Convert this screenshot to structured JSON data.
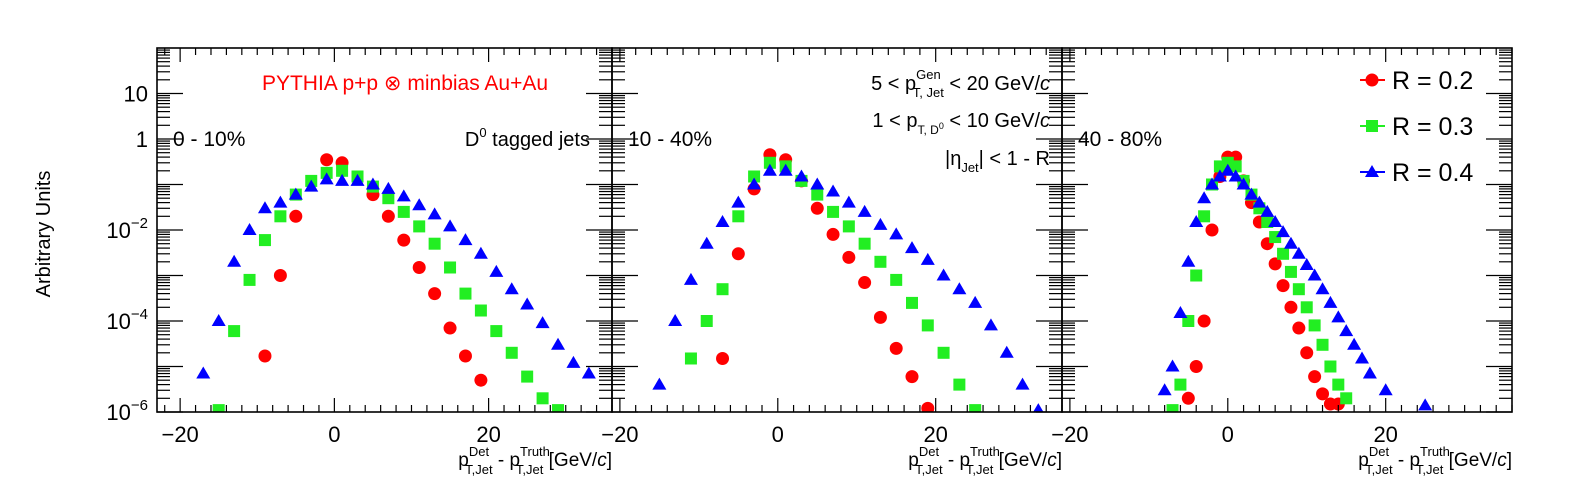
{
  "colors": {
    "R02": "#ff0000",
    "R03": "#22ee22",
    "R04": "#0000ff",
    "top_label": "#ff0000"
  },
  "ylabel": "Arbitrary Units",
  "xlabel": {
    "prefix": "p",
    "sup1": "Det",
    "sub1": "T,Jet",
    "dash": " - p",
    "sup2": "Truth",
    "sub2": "T,Jet",
    "unit": " [GeV/",
    "unit_c": "c",
    "unit_end": "]"
  },
  "annotations": {
    "generator": "PYTHIA p+p ⊗ minbias Au+Au",
    "tag": {
      "main": "D",
      "sup": "0",
      "rest": " tagged jets"
    },
    "pt_gen": {
      "pre": "5 < p",
      "sup": "Gen",
      "sub": "T, Jet",
      "post": " < 20 GeV/",
      "c": "c"
    },
    "pt_d0": {
      "pre": "1 < p",
      "sub": "T, D",
      "subsup": "0",
      "post": " < 10 GeV/",
      "c": "c"
    },
    "eta": {
      "pre": "|η",
      "sub": "Jet",
      "post": "| < 1 - R"
    }
  },
  "legend": [
    "R = 0.2",
    "R = 0.3",
    "R = 0.4"
  ],
  "y_tick_labels": [
    {
      "mant": "10",
      "exp": "",
      "value": 10
    },
    {
      "mant": "1",
      "exp": "",
      "value": 1
    },
    {
      "mant": "10",
      "exp": "−2",
      "value": 0.01
    },
    {
      "mant": "10",
      "exp": "−4",
      "value": 0.0001
    },
    {
      "mant": "10",
      "exp": "−6",
      "value": 1e-06
    }
  ],
  "chart_data": [
    {
      "type": "scatter",
      "panel_label": "0 - 10%",
      "x_tick_labels": [
        "−20",
        "0",
        "20"
      ],
      "xlim": [
        -23,
        36
      ],
      "ylim": [
        1e-06,
        100
      ],
      "yscale": "log",
      "series": [
        {
          "name": "R = 0.2",
          "marker": "circle",
          "x": [
            -9,
            -7,
            -5,
            -1,
            1,
            5,
            7,
            9,
            11,
            13,
            15,
            17,
            19
          ],
          "y": [
            1.7e-05,
            0.001,
            0.02,
            0.35,
            0.3,
            0.06,
            0.02,
            0.006,
            0.0015,
            0.0004,
            7e-05,
            1.7e-05,
            5e-06
          ]
        },
        {
          "name": "R = 0.3",
          "marker": "square",
          "x": [
            -15,
            -13,
            -11,
            -9,
            -7,
            -5,
            -3,
            -1,
            1,
            3,
            5,
            7,
            9,
            11,
            13,
            15,
            17,
            19,
            21,
            23,
            25,
            27,
            29
          ],
          "y": [
            1.1e-06,
            6e-05,
            0.0008,
            0.006,
            0.02,
            0.06,
            0.12,
            0.18,
            0.2,
            0.15,
            0.09,
            0.05,
            0.025,
            0.012,
            0.005,
            0.0015,
            0.0004,
            0.00017,
            6e-05,
            2e-05,
            6e-06,
            2e-06,
            1.1e-06
          ]
        },
        {
          "name": "R = 0.4",
          "marker": "triangle",
          "x": [
            -17,
            -15,
            -13,
            -11,
            -9,
            -7,
            -5,
            -3,
            -1,
            1,
            3,
            5,
            7,
            9,
            11,
            13,
            15,
            17,
            19,
            21,
            23,
            25,
            27,
            29,
            31,
            33
          ],
          "y": [
            7e-06,
            0.0001,
            0.002,
            0.01,
            0.03,
            0.04,
            0.06,
            0.09,
            0.13,
            0.12,
            0.12,
            0.1,
            0.08,
            0.055,
            0.035,
            0.022,
            0.012,
            0.006,
            0.003,
            0.0012,
            0.0005,
            0.00023,
            9e-05,
            3e-05,
            1.2e-05,
            7e-06
          ]
        }
      ]
    },
    {
      "type": "scatter",
      "panel_label": "10 - 40%",
      "x_tick_labels": [
        "−20",
        "0",
        "20"
      ],
      "xlim": [
        -21,
        36
      ],
      "ylim": [
        1e-06,
        100
      ],
      "yscale": "log",
      "series": [
        {
          "name": "R = 0.2",
          "marker": "circle",
          "x": [
            -7,
            -5,
            -3,
            -1,
            1,
            3,
            5,
            7,
            9,
            11,
            13,
            15,
            17,
            19
          ],
          "y": [
            1.5e-05,
            0.003,
            0.08,
            0.45,
            0.35,
            0.12,
            0.03,
            0.008,
            0.0025,
            0.0007,
            0.00012,
            2.5e-05,
            6e-06,
            1.2e-06
          ]
        },
        {
          "name": "R = 0.3",
          "marker": "square",
          "x": [
            -11,
            -9,
            -7,
            -5,
            -3,
            -1,
            1,
            3,
            5,
            7,
            9,
            11,
            13,
            15,
            17,
            19,
            21,
            23,
            25
          ],
          "y": [
            1.5e-05,
            0.0001,
            0.0005,
            0.02,
            0.15,
            0.3,
            0.25,
            0.12,
            0.06,
            0.025,
            0.012,
            0.005,
            0.002,
            0.0008,
            0.00025,
            8e-05,
            2e-05,
            4e-06,
            1.1e-06
          ]
        },
        {
          "name": "R = 0.4",
          "marker": "triangle",
          "x": [
            -15,
            -13,
            -11,
            -9,
            -7,
            -5,
            -3,
            -1,
            1,
            3,
            5,
            7,
            9,
            11,
            13,
            15,
            17,
            19,
            21,
            23,
            25,
            27,
            29,
            31,
            33
          ],
          "y": [
            4e-06,
            0.0001,
            0.0008,
            0.005,
            0.015,
            0.04,
            0.1,
            0.2,
            0.2,
            0.15,
            0.1,
            0.07,
            0.04,
            0.025,
            0.013,
            0.008,
            0.004,
            0.0022,
            0.001,
            0.0005,
            0.00025,
            8e-05,
            2e-05,
            4e-06,
            1.1e-06
          ]
        }
      ]
    },
    {
      "type": "scatter",
      "panel_label": "40 - 80%",
      "x_tick_labels": [
        "−20",
        "0",
        "20"
      ],
      "xlim": [
        -21,
        36
      ],
      "ylim": [
        1e-06,
        100
      ],
      "yscale": "log",
      "series": [
        {
          "name": "R = 0.2",
          "marker": "circle",
          "x": [
            -5,
            -4,
            -3,
            -2,
            -1,
            0,
            1,
            2,
            3,
            4,
            5,
            6,
            7,
            8,
            9,
            10,
            11,
            12,
            13,
            14
          ],
          "y": [
            2e-06,
            1e-05,
            0.0001,
            0.01,
            0.15,
            0.4,
            0.4,
            0.12,
            0.04,
            0.015,
            0.005,
            0.0018,
            0.0006,
            0.0002,
            7e-05,
            2e-05,
            6e-06,
            2.5e-06,
            1.5e-06,
            1.5e-06
          ]
        },
        {
          "name": "R = 0.3",
          "marker": "square",
          "x": [
            -7,
            -6,
            -5,
            -4,
            -3,
            -2,
            -1,
            0,
            1,
            2,
            3,
            4,
            5,
            6,
            7,
            8,
            9,
            10,
            11,
            12,
            13,
            14,
            15
          ],
          "y": [
            1.1e-06,
            4e-06,
            0.0001,
            0.001,
            0.02,
            0.1,
            0.25,
            0.3,
            0.25,
            0.12,
            0.06,
            0.03,
            0.015,
            0.007,
            0.003,
            0.0012,
            0.0005,
            0.0002,
            8e-05,
            3e-05,
            1e-05,
            4e-06,
            2e-06
          ]
        },
        {
          "name": "R = 0.4",
          "marker": "triangle",
          "x": [
            -8,
            -7,
            -6,
            -5,
            -4,
            -3,
            -2,
            -1,
            0,
            1,
            2,
            3,
            4,
            5,
            6,
            7,
            8,
            9,
            10,
            11,
            12,
            13,
            14,
            15,
            16,
            17,
            18,
            20,
            25
          ],
          "y": [
            3e-06,
            1e-05,
            0.00015,
            0.002,
            0.015,
            0.05,
            0.1,
            0.15,
            0.2,
            0.15,
            0.1,
            0.06,
            0.04,
            0.025,
            0.015,
            0.009,
            0.005,
            0.003,
            0.0017,
            0.001,
            0.0005,
            0.00025,
            0.00012,
            6e-05,
            3e-05,
            1.5e-05,
            7e-06,
            3e-06,
            1.4e-06
          ]
        }
      ]
    }
  ]
}
